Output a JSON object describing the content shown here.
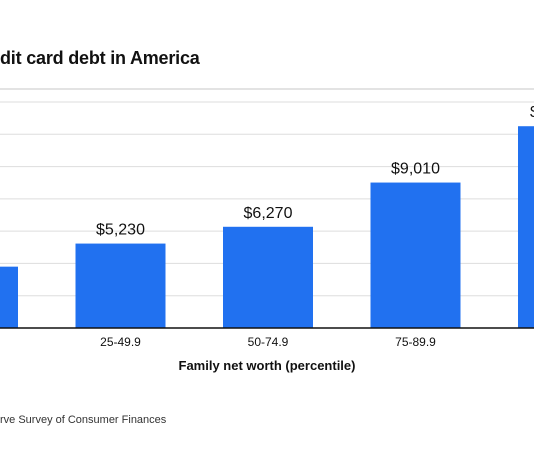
{
  "title": "dit card debt in America",
  "source": "rve Survey of Consumer Finances",
  "chart_data": {
    "type": "bar",
    "title": "dit card debt in America",
    "xlabel": "Family net worth (percentile)",
    "ylabel": "",
    "categories": [
      "",
      "25-49.9",
      "50-74.9",
      "75-89.9",
      ""
    ],
    "values": [
      3800,
      5230,
      6270,
      9010,
      12500
    ],
    "data_labels": [
      "",
      "$5,230",
      "$6,270",
      "$9,010",
      "$"
    ],
    "ylim": [
      0,
      14000
    ],
    "grid": true,
    "legend": "none",
    "colors": {
      "bar": "#2171f0",
      "grid": "#dddddd",
      "axis": "#111111"
    }
  }
}
